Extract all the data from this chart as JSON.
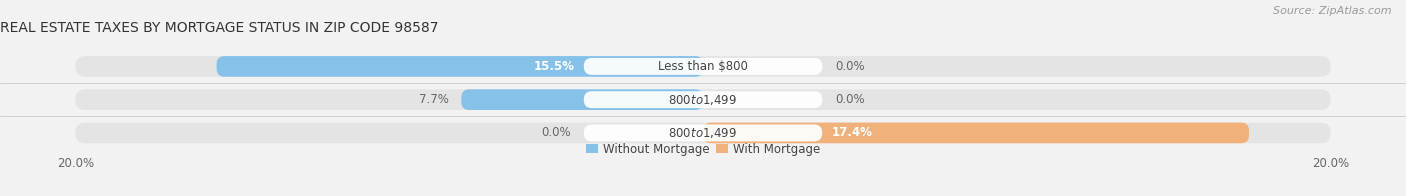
{
  "title": "REAL ESTATE TAXES BY MORTGAGE STATUS IN ZIP CODE 98587",
  "source": "Source: ZipAtlas.com",
  "rows": [
    {
      "label": "Less than $800",
      "without_mortgage": 15.5,
      "with_mortgage": 0.0
    },
    {
      "label": "$800 to $1,499",
      "without_mortgage": 7.7,
      "with_mortgage": 0.0
    },
    {
      "label": "$800 to $1,499",
      "without_mortgage": 0.0,
      "with_mortgage": 17.4
    }
  ],
  "max_val": 20.0,
  "color_without": "#85C1E9",
  "color_with": "#F0B27A",
  "bg_color": "#F2F2F2",
  "bar_bg_color": "#E4E4E4",
  "bar_bg_color2": "#DCDCDC",
  "title_fontsize": 10,
  "label_fontsize": 8.5,
  "pct_fontsize_inside": 8.5,
  "pct_fontsize_outside": 8.5,
  "legend_fontsize": 8.5,
  "axis_label_fontsize": 8.5,
  "source_fontsize": 8
}
